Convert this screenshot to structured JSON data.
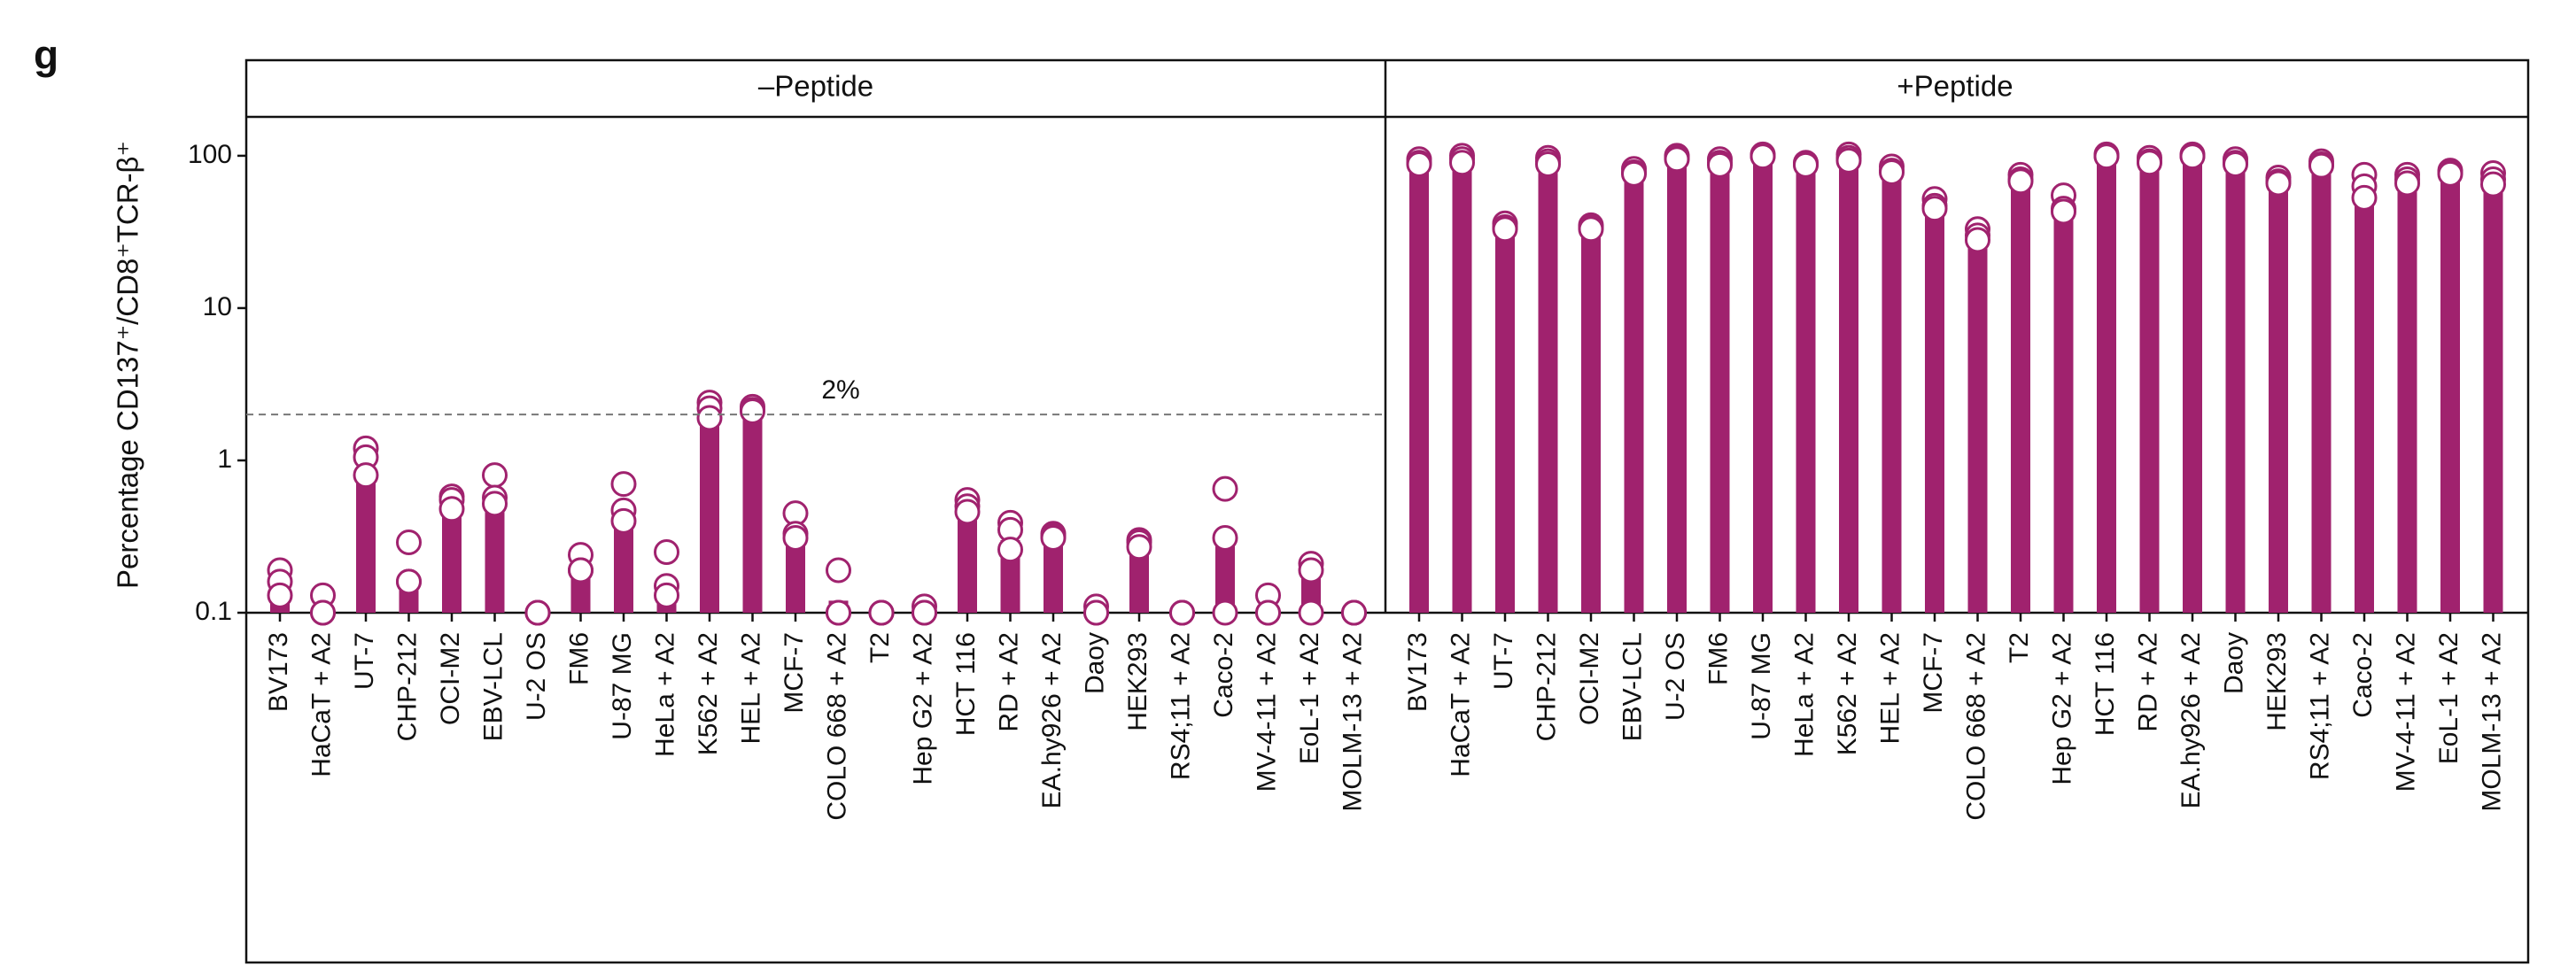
{
  "chart_data": {
    "type": "bar",
    "panel_label": "g",
    "y_label": "Percentage CD137⁺/CD8⁺TCR-β⁺",
    "log_scale": true,
    "ylim": [
      0.1,
      180
    ],
    "yticks": [
      0.1,
      1,
      10,
      100
    ],
    "color": "#a0226e",
    "threshold": {
      "value": 2,
      "label": "2%"
    },
    "panels": [
      {
        "title": "–Peptide",
        "categories": [
          "BV173",
          "HaCaT + A2",
          "UT-7",
          "CHP-212",
          "OCI-M2",
          "EBV-LCL",
          "U-2 OS",
          "FM6",
          "U-87 MG",
          "HeLa + A2",
          "K562 + A2",
          "HEL + A2",
          "MCF-7",
          "COLO 668 + A2",
          "T2",
          "Hep G2 + A2",
          "HCT 116",
          "RD + A2",
          "EA.hy926 + A2",
          "Daoy",
          "HEK293",
          "RS4;11 + A2",
          "Caco-2",
          "MV-4-11 + A2",
          "EoL-1 + A2",
          "MOLM-13 + A2"
        ],
        "values": [
          0.12,
          0.1,
          0.8,
          0.18,
          0.5,
          0.55,
          0.1,
          0.19,
          0.4,
          0.13,
          2.0,
          2.1,
          0.33,
          0.12,
          0.1,
          0.1,
          0.48,
          0.3,
          0.32,
          0.1,
          0.28,
          0.1,
          0.3,
          0.11,
          0.18,
          0.1
        ],
        "points": [
          [
            0.19,
            0.16,
            0.13
          ],
          [
            0.13,
            0.1,
            0.1
          ],
          [
            1.2,
            1.05,
            0.8
          ],
          [
            0.29,
            0.16,
            0.16
          ],
          [
            0.58,
            0.55,
            0.48
          ],
          [
            0.8,
            0.57,
            0.52
          ],
          [
            0.1,
            0.1,
            0.1
          ],
          [
            0.24,
            0.19,
            0.19
          ],
          [
            0.7,
            0.47,
            0.4
          ],
          [
            0.25,
            0.15,
            0.13
          ],
          [
            2.4,
            2.2,
            1.9
          ],
          [
            2.25,
            2.15,
            2.1
          ],
          [
            0.45,
            0.33,
            0.31
          ],
          [
            0.19,
            0.1,
            0.1
          ],
          [
            0.1,
            0.1,
            0.1
          ],
          [
            0.11,
            0.1,
            0.1
          ],
          [
            0.55,
            0.5,
            0.46
          ],
          [
            0.39,
            0.35,
            0.26
          ],
          [
            0.33,
            0.32,
            0.31
          ],
          [
            0.11,
            0.1,
            0.1
          ],
          [
            0.3,
            0.29,
            0.27
          ],
          [
            0.1,
            0.1,
            0.1
          ],
          [
            0.65,
            0.31,
            0.1
          ],
          [
            0.13,
            0.1,
            0.1
          ],
          [
            0.21,
            0.19,
            0.1
          ],
          [
            0.1,
            0.1,
            0.1
          ]
        ]
      },
      {
        "title": "+Peptide",
        "categories": [
          "BV173",
          "HaCaT + A2",
          "UT-7",
          "CHP-212",
          "OCI-M2",
          "EBV-LCL",
          "U-2 OS",
          "FM6",
          "U-87 MG",
          "HeLa + A2",
          "K562 + A2",
          "HEL + A2",
          "MCF-7",
          "COLO 668 + A2",
          "T2",
          "Hep G2 + A2",
          "HCT 116",
          "RD + A2",
          "EA.hy926 + A2",
          "Daoy",
          "HEK293",
          "RS4;11 + A2",
          "Caco-2",
          "MV-4-11 + A2",
          "EoL-1 + A2",
          "MOLM-13 + A2"
        ],
        "values": [
          90,
          92,
          33,
          90,
          33,
          78,
          97,
          90,
          100,
          88,
          95,
          80,
          45,
          28,
          68,
          45,
          100,
          92,
          100,
          90,
          66,
          88,
          60,
          68,
          77,
          70
        ],
        "points": [
          [
            95,
            90,
            88
          ],
          [
            100,
            95,
            90
          ],
          [
            36,
            34,
            33
          ],
          [
            97,
            92,
            88
          ],
          [
            35,
            34,
            33
          ],
          [
            82,
            78,
            76
          ],
          [
            100,
            98,
            95
          ],
          [
            95,
            90,
            87
          ],
          [
            102,
            100,
            99
          ],
          [
            90,
            88,
            87
          ],
          [
            102,
            97,
            93
          ],
          [
            85,
            80,
            78
          ],
          [
            52,
            47,
            45
          ],
          [
            33,
            30,
            28
          ],
          [
            75,
            70,
            68
          ],
          [
            55,
            45,
            43
          ],
          [
            102,
            100,
            99
          ],
          [
            97,
            92,
            90
          ],
          [
            102,
            100,
            99
          ],
          [
            95,
            90,
            88
          ],
          [
            72,
            68,
            66
          ],
          [
            92,
            88,
            86
          ],
          [
            75,
            63,
            53
          ],
          [
            75,
            70,
            66
          ],
          [
            80,
            78,
            76
          ],
          [
            77,
            70,
            65
          ]
        ]
      }
    ]
  }
}
